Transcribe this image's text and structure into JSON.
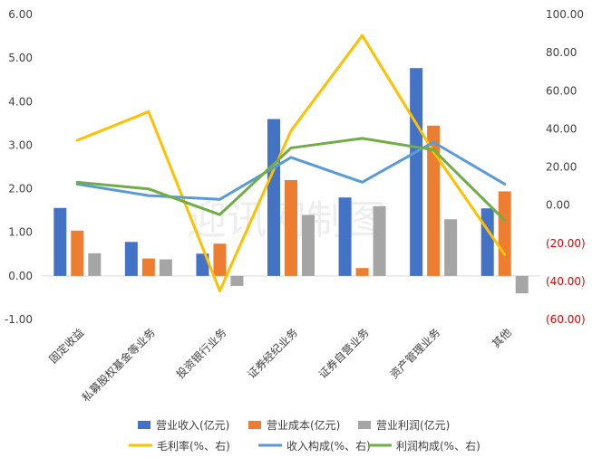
{
  "chart_data": {
    "type": "bar",
    "categories": [
      "固定收益",
      "私募股权基金等业务",
      "投资银行业务",
      "证券经纪业务",
      "证券自营业务",
      "资产管理业务",
      "其他"
    ],
    "bar_series": [
      {
        "name": "营业收入(亿元)",
        "color": "#4472c4",
        "values": [
          1.56,
          0.78,
          0.51,
          3.6,
          1.8,
          4.77,
          1.55
        ]
      },
      {
        "name": "营业成本(亿元)",
        "color": "#ed7d31",
        "values": [
          1.04,
          0.4,
          0.74,
          2.2,
          0.18,
          3.45,
          1.94
        ]
      },
      {
        "name": "营业利润(亿元)",
        "color": "#a5a5a5",
        "values": [
          0.52,
          0.38,
          -0.23,
          1.4,
          1.6,
          1.3,
          -0.4
        ]
      }
    ],
    "line_series": [
      {
        "name": "毛利率(%、右)",
        "color": "#ffc000",
        "values": [
          34,
          49,
          -45,
          39,
          89,
          28,
          -26
        ]
      },
      {
        "name": "收入构成(%、右)",
        "color": "#5b9bd5",
        "values": [
          11,
          5,
          3,
          25,
          12,
          33,
          11
        ]
      },
      {
        "name": "利润构成(%、右)",
        "color": "#70ad47",
        "values": [
          12,
          8.5,
          -5,
          30,
          35,
          29,
          -8
        ]
      }
    ],
    "y_left": {
      "min": -1,
      "max": 6,
      "ticks": [
        "-1.00",
        "0.00",
        "1.00",
        "2.00",
        "3.00",
        "4.00",
        "5.00",
        "6.00"
      ]
    },
    "y_right": {
      "min": -60,
      "max": 100,
      "ticks": [
        "(60.00)",
        "(40.00)",
        "(20.00)",
        "0.00",
        "20.00",
        "40.00",
        "60.00",
        "80.00",
        "100.00"
      ]
    },
    "grid": false,
    "legend": "bottom",
    "watermark": "迎讯网制图"
  }
}
